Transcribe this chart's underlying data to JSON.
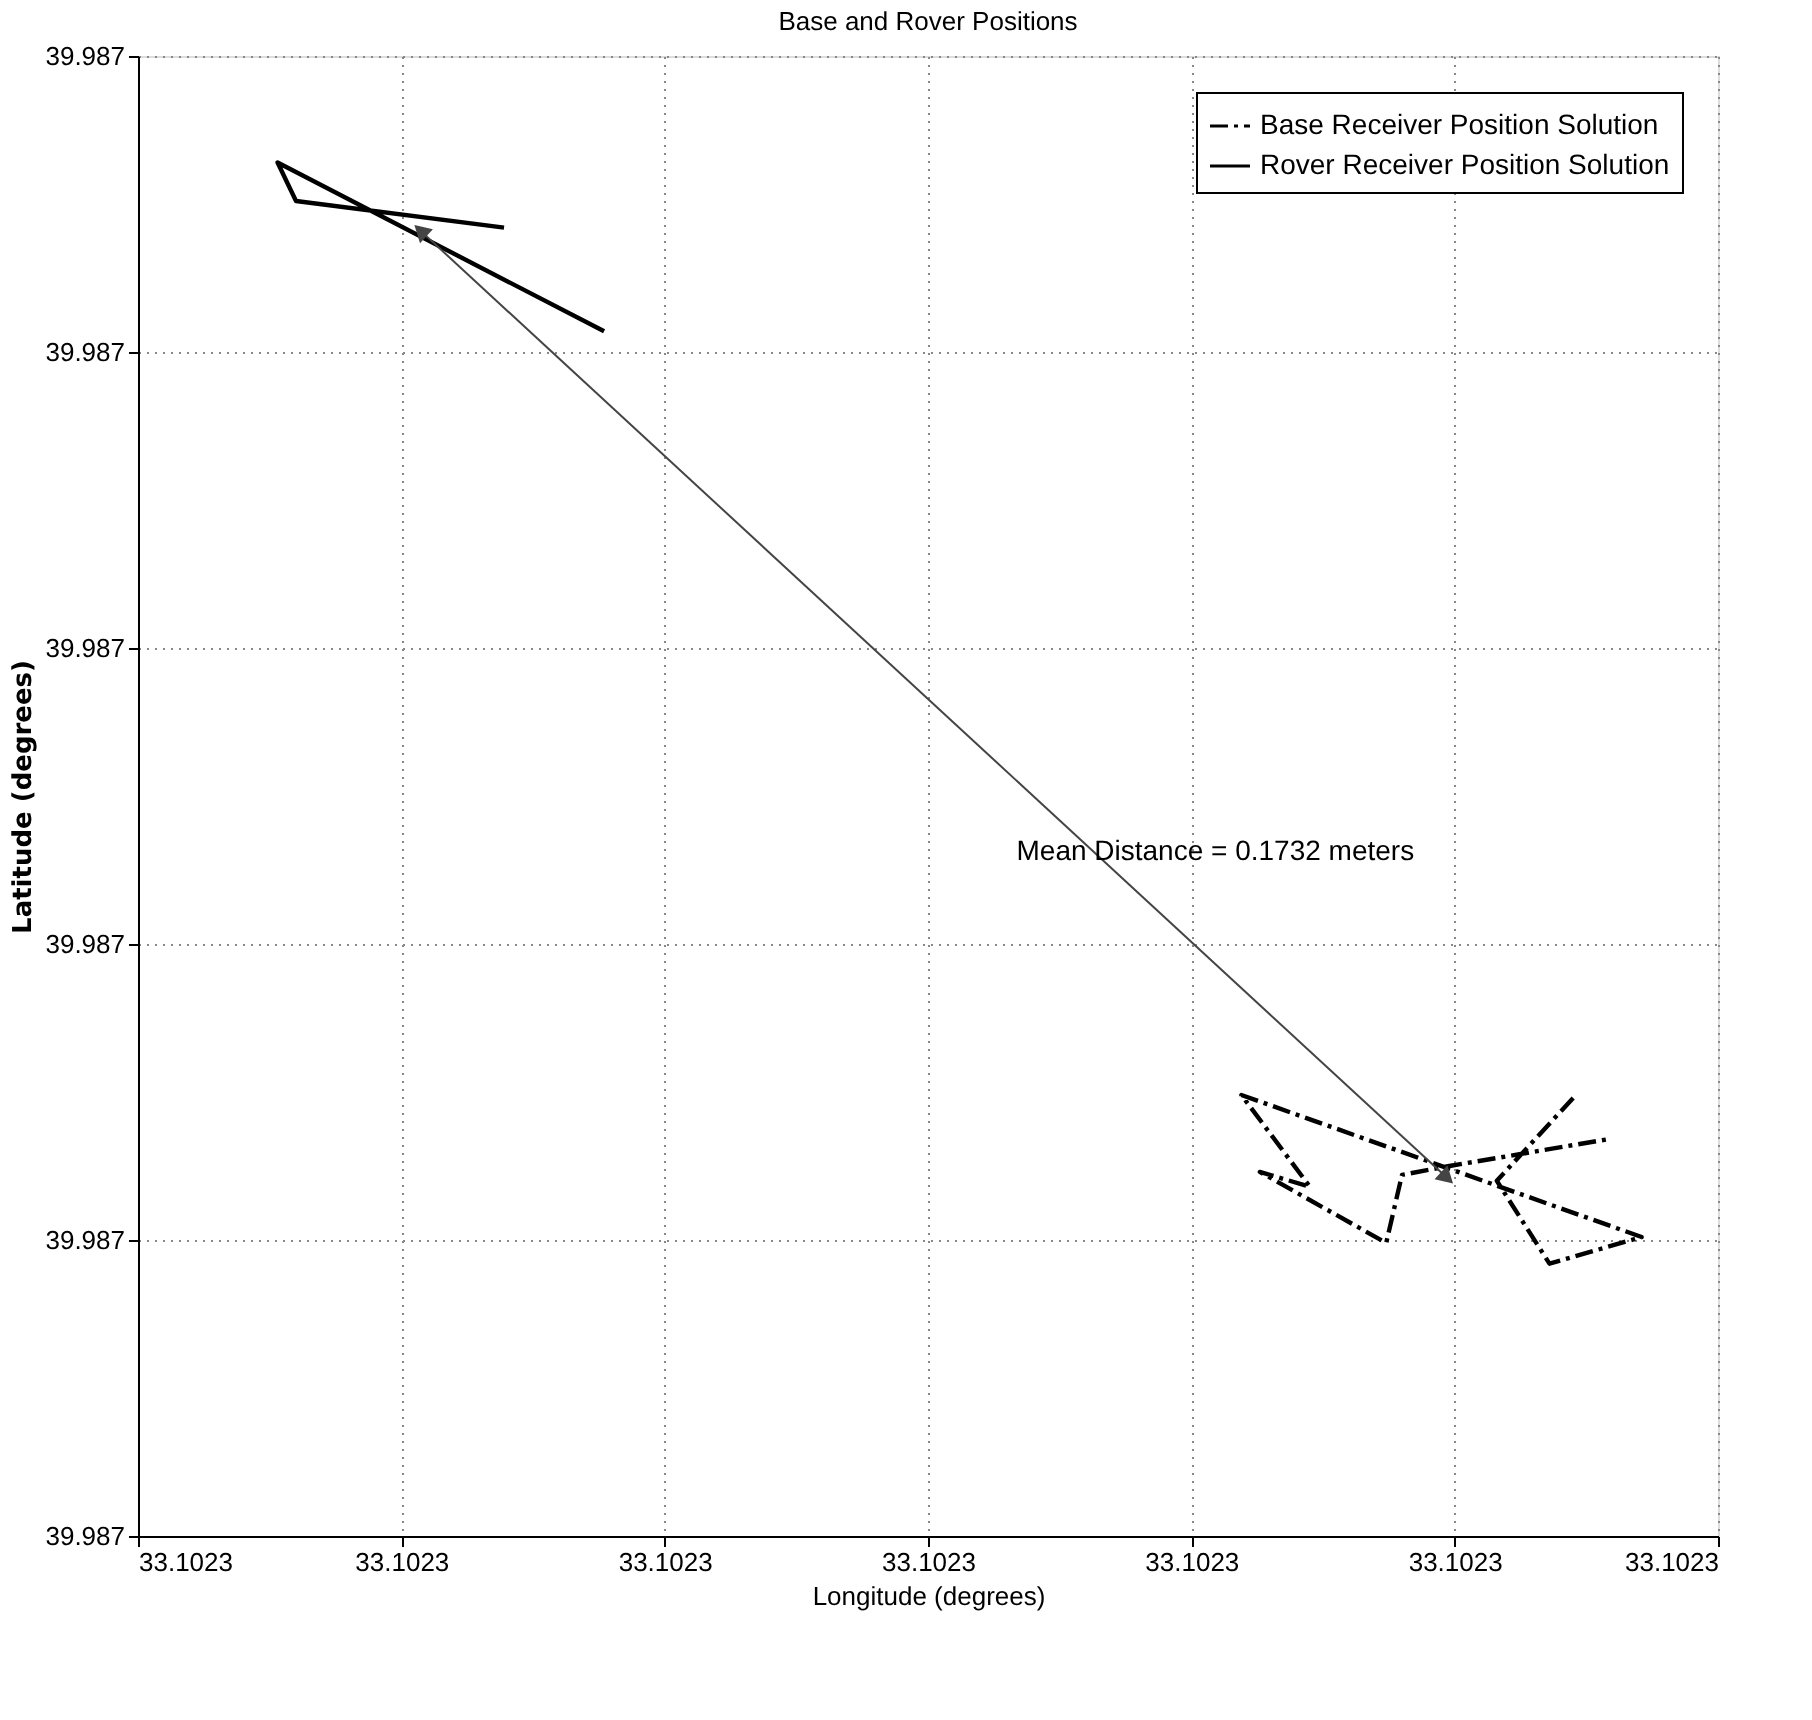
{
  "chart_data": {
    "type": "line",
    "title": "Base and Rover Positions",
    "xlabel": "Longitude (degrees)",
    "ylabel": "Latitude (degrees)",
    "xlim": [
      33.10226,
      33.10232
    ],
    "ylim": [
      39.98675,
      39.9868
    ],
    "xticks": [
      {
        "value": 33.10226,
        "label": "33.1023"
      },
      {
        "value": 33.10227,
        "label": "33.1023"
      },
      {
        "value": 33.10228,
        "label": "33.1023"
      },
      {
        "value": 33.10229,
        "label": "33.1023"
      },
      {
        "value": 33.1023,
        "label": "33.1023"
      },
      {
        "value": 33.10231,
        "label": "33.1023"
      },
      {
        "value": 33.10232,
        "label": "33.1023"
      }
    ],
    "yticks": [
      {
        "value": 39.98675,
        "label": "39.987"
      },
      {
        "value": 39.98676,
        "label": "39.987"
      },
      {
        "value": 39.98677,
        "label": "39.987"
      },
      {
        "value": 39.98678,
        "label": "39.987"
      },
      {
        "value": 39.98679,
        "label": "39.987"
      },
      {
        "value": 39.9868,
        "label": "39.987"
      }
    ],
    "series": [
      {
        "name": "Base Receiver Position Solution",
        "color": "#000000",
        "line_style": "dashed",
        "x": [
          33.1023145,
          33.1023116,
          33.1023136,
          33.1023171,
          33.1023019,
          33.1023045,
          33.1023026,
          33.1023074,
          33.102308,
          33.1023098,
          33.1023158
        ],
        "values": [
          39.9867648,
          39.986762,
          39.9867592,
          39.9867601,
          39.9867649,
          39.9867618,
          39.9867623,
          39.9867599,
          39.9867622,
          39.9867625,
          39.9867634
        ]
      },
      {
        "name": "Rover Receiver Position Solution",
        "color": "#000000",
        "line_style": "solid",
        "x": [
          33.1022739,
          33.102266,
          33.1022653,
          33.1022777
        ],
        "values": [
          39.9867942,
          39.9867951,
          39.9867964,
          39.9867907
        ]
      }
    ],
    "annotations": [
      "Mean Distance = 0.1732 meters"
    ],
    "grid": true,
    "legend": "top right",
    "marker": "none"
  }
}
